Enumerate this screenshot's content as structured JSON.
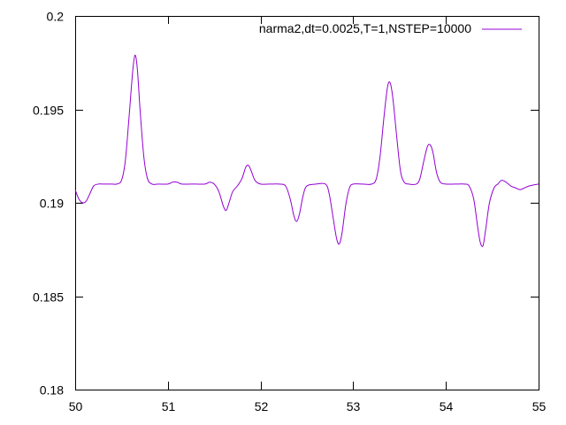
{
  "chart_data": {
    "type": "line",
    "title": "",
    "xlabel": "",
    "ylabel": "",
    "xlim": [
      50,
      55
    ],
    "ylim": [
      0.18,
      0.2
    ],
    "grid": false,
    "legend_position": "top-right",
    "x_ticks": [
      50,
      51,
      52,
      53,
      54,
      55
    ],
    "x_tick_labels": [
      "50",
      "51",
      "52",
      "53",
      "54",
      "55"
    ],
    "y_ticks": [
      0.18,
      0.185,
      0.19,
      0.195,
      0.2
    ],
    "y_tick_labels": [
      "0.18",
      "0.185",
      "0.19",
      "0.195",
      "0.2"
    ],
    "series": [
      {
        "name": "narma2,dt=0.0025,T=1,NSTEP=10000",
        "color": "#9400d3",
        "points": [
          [
            50.0,
            0.1907
          ],
          [
            50.04,
            0.1902
          ],
          [
            50.08,
            0.19
          ],
          [
            50.12,
            0.1901
          ],
          [
            50.16,
            0.1905
          ],
          [
            50.2,
            0.1909
          ],
          [
            50.25,
            0.191
          ],
          [
            50.3,
            0.191
          ],
          [
            50.4,
            0.191
          ],
          [
            50.45,
            0.191
          ],
          [
            50.5,
            0.1912
          ],
          [
            50.54,
            0.1922
          ],
          [
            50.58,
            0.1945
          ],
          [
            50.62,
            0.197
          ],
          [
            50.645,
            0.1979
          ],
          [
            50.67,
            0.1972
          ],
          [
            50.7,
            0.195
          ],
          [
            50.74,
            0.1925
          ],
          [
            50.78,
            0.1913
          ],
          [
            50.83,
            0.191
          ],
          [
            50.9,
            0.191
          ],
          [
            51.0,
            0.191
          ],
          [
            51.05,
            0.1911
          ],
          [
            51.1,
            0.1911
          ],
          [
            51.15,
            0.191
          ],
          [
            51.25,
            0.191
          ],
          [
            51.3,
            0.191
          ],
          [
            51.4,
            0.191
          ],
          [
            51.45,
            0.1911
          ],
          [
            51.5,
            0.191
          ],
          [
            51.55,
            0.1906
          ],
          [
            51.6,
            0.1898
          ],
          [
            51.63,
            0.1896
          ],
          [
            51.66,
            0.19
          ],
          [
            51.7,
            0.1906
          ],
          [
            51.75,
            0.1909
          ],
          [
            51.8,
            0.1913
          ],
          [
            51.84,
            0.1919
          ],
          [
            51.87,
            0.192
          ],
          [
            51.9,
            0.1917
          ],
          [
            51.94,
            0.1912
          ],
          [
            52.0,
            0.191
          ],
          [
            52.1,
            0.191
          ],
          [
            52.2,
            0.191
          ],
          [
            52.27,
            0.1909
          ],
          [
            52.32,
            0.1902
          ],
          [
            52.36,
            0.1893
          ],
          [
            52.39,
            0.189
          ],
          [
            52.42,
            0.1894
          ],
          [
            52.46,
            0.1904
          ],
          [
            52.5,
            0.1909
          ],
          [
            52.6,
            0.191
          ],
          [
            52.7,
            0.191
          ],
          [
            52.74,
            0.1905
          ],
          [
            52.78,
            0.1893
          ],
          [
            52.82,
            0.1881
          ],
          [
            52.85,
            0.1878
          ],
          [
            52.88,
            0.1884
          ],
          [
            52.92,
            0.1899
          ],
          [
            52.96,
            0.1908
          ],
          [
            53.0,
            0.191
          ],
          [
            53.1,
            0.191
          ],
          [
            53.2,
            0.191
          ],
          [
            53.25,
            0.1913
          ],
          [
            53.29,
            0.1925
          ],
          [
            53.33,
            0.1945
          ],
          [
            53.37,
            0.1962
          ],
          [
            53.4,
            0.1964
          ],
          [
            53.43,
            0.1955
          ],
          [
            53.47,
            0.1935
          ],
          [
            53.51,
            0.1917
          ],
          [
            53.55,
            0.1911
          ],
          [
            53.6,
            0.191
          ],
          [
            53.68,
            0.191
          ],
          [
            53.72,
            0.1913
          ],
          [
            53.76,
            0.1922
          ],
          [
            53.8,
            0.193
          ],
          [
            53.83,
            0.1931
          ],
          [
            53.86,
            0.1927
          ],
          [
            53.9,
            0.1916
          ],
          [
            53.94,
            0.1911
          ],
          [
            54.0,
            0.191
          ],
          [
            54.1,
            0.191
          ],
          [
            54.2,
            0.191
          ],
          [
            54.25,
            0.1909
          ],
          [
            54.3,
            0.1902
          ],
          [
            54.34,
            0.1888
          ],
          [
            54.37,
            0.1879
          ],
          [
            54.4,
            0.1877
          ],
          [
            54.43,
            0.1886
          ],
          [
            54.47,
            0.19
          ],
          [
            54.52,
            0.1908
          ],
          [
            54.56,
            0.191
          ],
          [
            54.6,
            0.1912
          ],
          [
            54.65,
            0.1911
          ],
          [
            54.7,
            0.1909
          ],
          [
            54.75,
            0.1908
          ],
          [
            54.8,
            0.1907
          ],
          [
            54.85,
            0.1908
          ],
          [
            54.9,
            0.1909
          ],
          [
            55.0,
            0.191
          ]
        ]
      }
    ]
  }
}
